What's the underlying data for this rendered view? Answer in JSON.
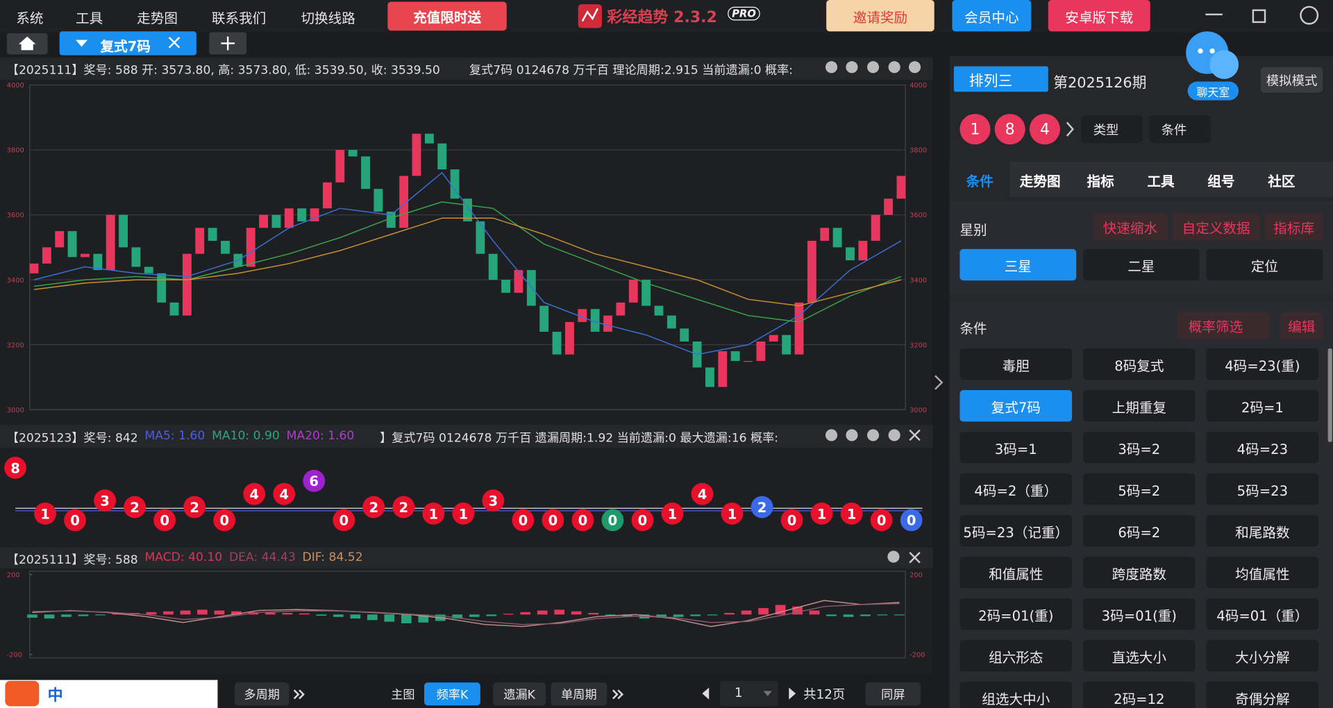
{
  "menu": [
    "系统",
    "工具",
    "走势图",
    "联系我们",
    "切换线路"
  ],
  "promo": "充值限时送",
  "app": {
    "name": "彩经趋势 2.3.2",
    "badge": "PRO"
  },
  "top_buttons": [
    "邀请奖励",
    "会员中心",
    "安卓版下载"
  ],
  "tab": "复式7码",
  "panels": [
    {
      "header": "【2025111】奖号: 588  开: 3573.80, 高: 3573.80, 低: 3539.50, 收: 3539.50",
      "info": "复式7码  0124678  万千百  理论周期:2.915  当前遗漏:0  概率:",
      "ylim": [
        3000,
        4000
      ],
      "yticks": [
        3000,
        3200,
        3400,
        3600,
        3800,
        4000
      ],
      "first_open": 3420,
      "closes": [
        3450,
        3500,
        3550,
        3470,
        3480,
        3430,
        3600,
        3500,
        3440,
        3420,
        3330,
        3290,
        3480,
        3560,
        3520,
        3480,
        3440,
        3560,
        3600,
        3560,
        3620,
        3580,
        3620,
        3700,
        3800,
        3780,
        3680,
        3610,
        3560,
        3720,
        3850,
        3820,
        3740,
        3650,
        3580,
        3480,
        3400,
        3360,
        3430,
        3320,
        3240,
        3170,
        3270,
        3310,
        3240,
        3290,
        3330,
        3400,
        3320,
        3290,
        3250,
        3210,
        3130,
        3070,
        3180,
        3150,
        3150,
        3210,
        3230,
        3170,
        3330,
        3520,
        3560,
        3500,
        3460,
        3520,
        3600,
        3650,
        3720
      ],
      "up_color": "#e8365d",
      "down_color": "#27a57a",
      "ma": [
        {
          "color": "#3b6fd8",
          "values": [
            3400,
            3440,
            3420,
            3410,
            3460,
            3560,
            3620,
            3600,
            3730,
            3520,
            3330,
            3270,
            3230,
            3170,
            3200,
            3290,
            3430,
            3520
          ]
        },
        {
          "color": "#3aa84a",
          "values": [
            3380,
            3400,
            3410,
            3400,
            3440,
            3480,
            3530,
            3590,
            3640,
            3620,
            3510,
            3450,
            3390,
            3340,
            3290,
            3270,
            3350,
            3410
          ]
        },
        {
          "color": "#c89030",
          "values": [
            3370,
            3390,
            3400,
            3400,
            3420,
            3450,
            3490,
            3540,
            3590,
            3590,
            3540,
            3480,
            3440,
            3400,
            3340,
            3320,
            3360,
            3400
          ]
        }
      ]
    },
    {
      "header": "【2025123】奖号: 842",
      "legend": [
        {
          "name": "MA5: 1.60",
          "color": "#4a5ee8"
        },
        {
          "name": "MA10: 0.90",
          "color": "#2aa87b"
        },
        {
          "name": "MA20: 1.60",
          "color": "#b03ad0"
        }
      ],
      "info": "】复式7码  0124678  万千百  遗漏周期:1.92  当前遗漏:0  最大遗漏:16  概率:",
      "values": [
        8,
        1,
        0,
        3,
        2,
        0,
        2,
        0,
        4,
        4,
        6,
        0,
        2,
        2,
        1,
        1,
        3,
        0,
        0,
        0,
        0,
        0,
        1,
        4,
        1,
        2,
        0,
        1,
        1,
        0,
        0
      ],
      "colors": [
        "#e8102a",
        "#e8102a",
        "#e8102a",
        "#e8102a",
        "#e8102a",
        "#e8102a",
        "#e8102a",
        "#e8102a",
        "#e8102a",
        "#e8102a",
        "#a020d0",
        "#e8102a",
        "#e8102a",
        "#e8102a",
        "#e8102a",
        "#e8102a",
        "#e8102a",
        "#e8102a",
        "#e8102a",
        "#e8102a",
        "#1f9a6a",
        "#e8102a",
        "#e8102a",
        "#e8102a",
        "#e8102a",
        "#3a6ae8",
        "#e8102a",
        "#e8102a",
        "#e8102a",
        "#e8102a",
        "#3a6ae8"
      ]
    },
    {
      "header": "【2025111】奖号: 588",
      "legend": [
        {
          "name": "MACD: 40.10",
          "color": "#d8365d"
        },
        {
          "name": "DEA: 44.43",
          "color": "#a0405a"
        },
        {
          "name": "DIF: 84.52",
          "color": "#c89060"
        }
      ],
      "ylim": [
        -200,
        200
      ],
      "yticks": [
        -200,
        200
      ],
      "bars": [
        -16,
        -20,
        -12,
        -8,
        -4,
        6,
        8,
        12,
        16,
        20,
        24,
        20,
        16,
        12,
        10,
        8,
        6,
        -6,
        -12,
        -20,
        -28,
        -36,
        -44,
        -40,
        -32,
        -20,
        -12,
        -8,
        4,
        12,
        20,
        24,
        16,
        8,
        -4,
        -12,
        -20,
        -16,
        -12,
        -8,
        -4,
        8,
        20,
        32,
        48,
        40,
        20,
        -8,
        -12,
        -8,
        -4,
        -4
      ],
      "dif": [
        10,
        20,
        10,
        -10,
        -40,
        -10,
        20,
        25,
        20,
        10,
        0,
        -20,
        -50,
        -60,
        -40,
        -10,
        0,
        -20,
        -60,
        -30,
        20,
        70,
        50,
        60
      ],
      "dea": [
        15,
        18,
        12,
        0,
        -25,
        -15,
        10,
        18,
        18,
        12,
        2,
        -10,
        -35,
        -50,
        -45,
        -20,
        -8,
        -15,
        -40,
        -35,
        0,
        40,
        50,
        55
      ]
    }
  ],
  "side": {
    "lottery": "排列三",
    "period": "第2025126期",
    "chat": "聊天室",
    "mode": "模拟模式",
    "balls": [
      "1",
      "8",
      "4"
    ],
    "selects": [
      "类型",
      "条件"
    ],
    "tabs": [
      "条件",
      "走势图",
      "指标",
      "工具",
      "组号",
      "社区"
    ],
    "star_title": "星别",
    "links": [
      "快速缩水",
      "自定义数据",
      "指标库"
    ],
    "stars": [
      "三星",
      "二星",
      "定位"
    ],
    "cond_title": "条件",
    "filter": "概率筛选",
    "edit": "编辑",
    "conditions": [
      [
        "毒胆",
        "8码复式",
        "4码=23(重)"
      ],
      [
        "复式7码",
        "上期重复",
        "2码=1"
      ],
      [
        "3码=1",
        "3码=2",
        "4码=23"
      ],
      [
        "4码=2（重）",
        "5码=2",
        "5码=23"
      ],
      [
        "5码=23（记重）",
        "6码=2",
        "和尾路数"
      ],
      [
        "和值属性",
        "跨度路数",
        "均值属性"
      ],
      [
        "2码=01(重)",
        "3码=01(重)",
        "4码=01（重）"
      ],
      [
        "组六形态",
        "直选大小",
        "大小分解"
      ],
      [
        "组选大中小",
        "2码=12",
        "奇偶分解"
      ]
    ]
  },
  "bottom": {
    "ime": "中",
    "multi": "多周期",
    "main": "主图",
    "views": [
      "频率K",
      "遗漏K",
      "单周期"
    ],
    "page": "1",
    "pages": "共12页",
    "same": "同屏"
  }
}
